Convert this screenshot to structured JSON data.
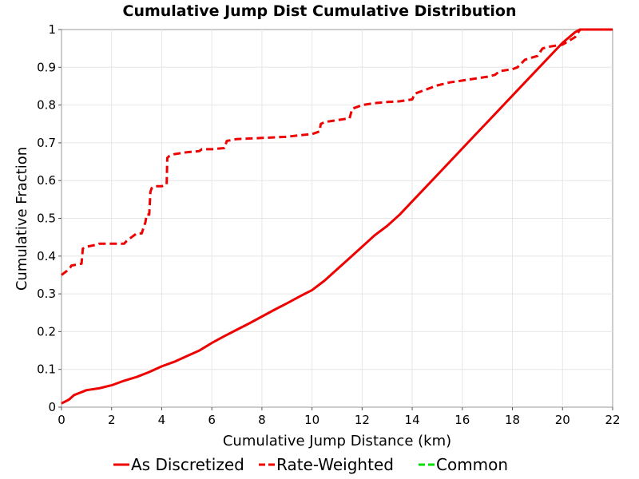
{
  "chart_data": {
    "type": "line",
    "title": "Cumulative Jump Dist Cumulative Distribution",
    "xlabel": "Cumulative Jump Distance (km)",
    "ylabel": "Cumulative Fraction",
    "xlim": [
      0,
      22
    ],
    "ylim": [
      0,
      1
    ],
    "xticks": [
      "0",
      "2",
      "4",
      "6",
      "8",
      "10",
      "12",
      "14",
      "16",
      "18",
      "20",
      "22"
    ],
    "yticks": [
      "0",
      "0.1",
      "0.2",
      "0.3",
      "0.4",
      "0.5",
      "0.6",
      "0.7",
      "0.8",
      "0.9",
      "1"
    ],
    "grid": true,
    "legend_position": "bottom",
    "series": [
      {
        "name": "As Discretized",
        "color": "#ee0000",
        "style": "solid",
        "x": [
          0,
          0.3,
          0.5,
          1.0,
          1.5,
          2.0,
          2.5,
          3.0,
          3.5,
          4.0,
          4.5,
          5.0,
          5.5,
          6.0,
          6.5,
          7.0,
          7.5,
          8.0,
          8.5,
          9.0,
          9.5,
          10.0,
          10.5,
          11.0,
          11.5,
          12.0,
          12.5,
          13.0,
          13.5,
          14.0,
          14.5,
          15.0,
          15.5,
          16.0,
          16.5,
          17.0,
          17.5,
          18.0,
          18.5,
          19.0,
          19.5,
          20.0,
          20.5,
          20.7,
          21.0,
          22.0
        ],
        "values": [
          0.01,
          0.02,
          0.032,
          0.045,
          0.05,
          0.058,
          0.07,
          0.08,
          0.093,
          0.108,
          0.12,
          0.135,
          0.15,
          0.17,
          0.188,
          0.205,
          0.222,
          0.24,
          0.258,
          0.275,
          0.293,
          0.31,
          0.335,
          0.365,
          0.395,
          0.425,
          0.455,
          0.48,
          0.51,
          0.545,
          0.58,
          0.615,
          0.65,
          0.685,
          0.72,
          0.755,
          0.79,
          0.825,
          0.86,
          0.895,
          0.93,
          0.965,
          0.993,
          1.0,
          1.0,
          1.0
        ]
      },
      {
        "name": "Rate-Weighted",
        "color": "#ee0000",
        "style": "dashed",
        "x": [
          0,
          0.1,
          0.2,
          0.35,
          0.4,
          0.8,
          0.85,
          1.0,
          1.4,
          1.5,
          2.5,
          2.6,
          2.8,
          3.0,
          3.2,
          3.35,
          3.4,
          3.5,
          3.55,
          3.6,
          3.7,
          4.0,
          4.2,
          4.22,
          4.3,
          4.5,
          5.0,
          5.5,
          5.6,
          6.0,
          6.5,
          6.6,
          7.0,
          8.0,
          9.0,
          9.5,
          10.0,
          10.3,
          10.35,
          10.5,
          11.0,
          11.5,
          11.6,
          12.0,
          12.5,
          13.0,
          13.5,
          14.0,
          14.1,
          14.5,
          15.0,
          15.5,
          16.0,
          16.5,
          17.0,
          17.3,
          17.5,
          18.0,
          18.2,
          18.5,
          19.0,
          19.2,
          19.5,
          20.0,
          20.5,
          20.7,
          21.0,
          22.0
        ],
        "values": [
          0.35,
          0.355,
          0.36,
          0.37,
          0.375,
          0.38,
          0.42,
          0.425,
          0.43,
          0.433,
          0.433,
          0.44,
          0.45,
          0.46,
          0.46,
          0.49,
          0.51,
          0.51,
          0.57,
          0.58,
          0.585,
          0.585,
          0.59,
          0.66,
          0.665,
          0.67,
          0.675,
          0.678,
          0.683,
          0.683,
          0.686,
          0.705,
          0.71,
          0.713,
          0.716,
          0.72,
          0.723,
          0.73,
          0.75,
          0.755,
          0.76,
          0.765,
          0.79,
          0.8,
          0.805,
          0.808,
          0.81,
          0.815,
          0.83,
          0.84,
          0.852,
          0.86,
          0.865,
          0.87,
          0.875,
          0.88,
          0.89,
          0.895,
          0.9,
          0.92,
          0.93,
          0.95,
          0.955,
          0.96,
          0.98,
          1.0,
          1.0,
          1.0
        ]
      },
      {
        "name": "Common",
        "color": "#00dd00",
        "style": "dashed",
        "x": [],
        "values": []
      }
    ]
  }
}
